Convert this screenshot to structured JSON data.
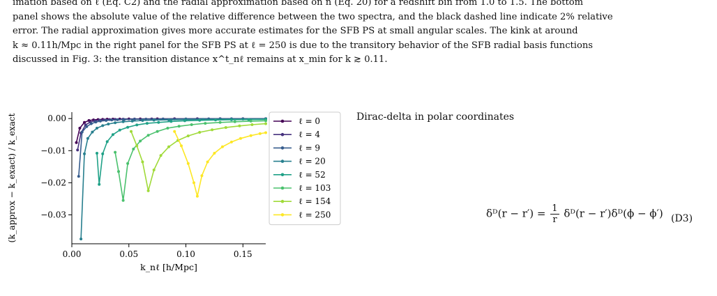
{
  "caption": {
    "line1": "imation based on ℓ (Eq. C2) and the radial approximation based on n (Eq. 20) for a redshift bin from 1.0 to 1.5. The bottom",
    "line2": "panel shows the absolute value of the relative difference between the two spectra, and the black dashed line indicate 2% relative",
    "line3": "error. The radial approximation gives more accurate estimates for the SFB PS at small angular scales. The kink at around",
    "line4": "k ≈ 0.11h/Mpc in the right panel for the SFB PS at ℓ = 250 is due to the transitory behavior of the SFB radial basis functions",
    "line5": "discussed in Fig. 3: the transition distance x^t_nℓ remains at x_min for k ≳ 0.11."
  },
  "section_heading": "Dirac-delta in polar coordinates",
  "equation": {
    "lhs": "δᴰ(r − r′) =",
    "num": "1",
    "den": "r",
    "rhs": "δᴰ(r − r′)δᴰ(ϕ − ϕ′)",
    "number": "(D3)"
  },
  "chart_data": {
    "type": "line",
    "xlabel": "k_nℓ [h/Mpc]",
    "ylabel": "(k_approx − k_exact) / k_exact",
    "xlim": [
      0.0,
      0.17
    ],
    "ylim": [
      -0.039,
      0.002
    ],
    "xticks": [
      "0.00",
      "0.05",
      "0.10",
      "0.15"
    ],
    "yticks": [
      "0.00",
      "−0.01",
      "−0.02",
      "−0.03"
    ],
    "legend_position": "outside-right",
    "grid": false,
    "series": [
      {
        "name": "ℓ = 0",
        "color": "#440154",
        "x": [
          0.004,
          0.007,
          0.011,
          0.015,
          0.019,
          0.023,
          0.027,
          0.031,
          0.036,
          0.042,
          0.05,
          0.06,
          0.075,
          0.09,
          0.11,
          0.13,
          0.15,
          0.17
        ],
        "y": [
          -0.0075,
          -0.003,
          -0.0012,
          -0.0006,
          -0.0004,
          -0.0003,
          -0.00025,
          -0.0002,
          -0.00017,
          -0.00014,
          -0.00012,
          -0.0001,
          -8e-05,
          -7e-05,
          -6e-05,
          -5e-05,
          -5e-05,
          -4e-05
        ]
      },
      {
        "name": "ℓ = 4",
        "color": "#46327e",
        "x": [
          0.005,
          0.008,
          0.012,
          0.016,
          0.02,
          0.024,
          0.028,
          0.033,
          0.038,
          0.045,
          0.055,
          0.07,
          0.09,
          0.11,
          0.13,
          0.15,
          0.17
        ],
        "y": [
          -0.0098,
          -0.0045,
          -0.002,
          -0.0011,
          -0.0007,
          -0.0005,
          -0.0004,
          -0.0003,
          -0.00025,
          -0.0002,
          -0.00015,
          -0.00012,
          -0.0001,
          -8e-05,
          -7e-05,
          -6e-05,
          -5e-05
        ]
      },
      {
        "name": "ℓ = 9",
        "color": "#365c8d",
        "x": [
          0.006,
          0.009,
          0.013,
          0.017,
          0.021,
          0.025,
          0.03,
          0.035,
          0.04,
          0.046,
          0.055,
          0.065,
          0.08,
          0.1,
          0.12,
          0.14,
          0.17
        ],
        "y": [
          -0.018,
          -0.0042,
          -0.0025,
          -0.0016,
          -0.0011,
          -0.0008,
          -0.0006,
          -0.00045,
          -0.00036,
          -0.0003,
          -0.00022,
          -0.00017,
          -0.00013,
          -0.0001,
          -8e-05,
          -7e-05,
          -6e-05
        ]
      },
      {
        "name": "ℓ = 20",
        "color": "#277f8e",
        "x": [
          0.008,
          0.011,
          0.014,
          0.018,
          0.022,
          0.027,
          0.032,
          0.038,
          0.045,
          0.053,
          0.062,
          0.072,
          0.085,
          0.1,
          0.115,
          0.13,
          0.15,
          0.17
        ],
        "y": [
          -0.0375,
          -0.011,
          -0.0062,
          -0.0042,
          -0.003,
          -0.0022,
          -0.0017,
          -0.0013,
          -0.001,
          -0.0008,
          -0.0006,
          -0.0005,
          -0.0004,
          -0.0003,
          -0.00025,
          -0.0002,
          -0.00016,
          -0.00013
        ]
      },
      {
        "name": "ℓ = 52",
        "color": "#1fa187",
        "x": [
          0.022,
          0.024,
          0.027,
          0.031,
          0.036,
          0.042,
          0.049,
          0.057,
          0.066,
          0.076,
          0.087,
          0.099,
          0.112,
          0.126,
          0.14,
          0.155,
          0.17
        ],
        "y": [
          -0.0108,
          -0.0205,
          -0.011,
          -0.0072,
          -0.005,
          -0.0036,
          -0.0027,
          -0.002,
          -0.0015,
          -0.0012,
          -0.0009,
          -0.0007,
          -0.00055,
          -0.00045,
          -0.00037,
          -0.0003,
          -0.00025
        ]
      },
      {
        "name": "ℓ = 103",
        "color": "#4ac16d",
        "x": [
          0.038,
          0.041,
          0.045,
          0.049,
          0.054,
          0.06,
          0.067,
          0.075,
          0.084,
          0.094,
          0.105,
          0.117,
          0.13,
          0.143,
          0.157,
          0.17
        ],
        "y": [
          -0.0105,
          -0.0165,
          -0.0255,
          -0.014,
          -0.0095,
          -0.007,
          -0.0052,
          -0.004,
          -0.003,
          -0.0024,
          -0.0019,
          -0.0015,
          -0.0012,
          -0.001,
          -0.0008,
          -0.0007
        ]
      },
      {
        "name": "ℓ = 154",
        "color": "#a0da39",
        "x": [
          0.052,
          0.057,
          0.062,
          0.067,
          0.072,
          0.078,
          0.085,
          0.093,
          0.102,
          0.112,
          0.123,
          0.135,
          0.147,
          0.158,
          0.17
        ],
        "y": [
          -0.004,
          -0.0085,
          -0.0135,
          -0.0225,
          -0.016,
          -0.0115,
          -0.0088,
          -0.0068,
          -0.0054,
          -0.0043,
          -0.0035,
          -0.0028,
          -0.0023,
          -0.0019,
          -0.0016
        ]
      },
      {
        "name": "ℓ = 250",
        "color": "#fde725",
        "x": [
          0.09,
          0.096,
          0.102,
          0.107,
          0.11,
          0.114,
          0.119,
          0.125,
          0.132,
          0.14,
          0.148,
          0.157,
          0.165,
          0.17
        ],
        "y": [
          -0.004,
          -0.0085,
          -0.014,
          -0.02,
          -0.0242,
          -0.0178,
          -0.0135,
          -0.0108,
          -0.0088,
          -0.0073,
          -0.0062,
          -0.0053,
          -0.0047,
          -0.0044
        ]
      }
    ]
  }
}
